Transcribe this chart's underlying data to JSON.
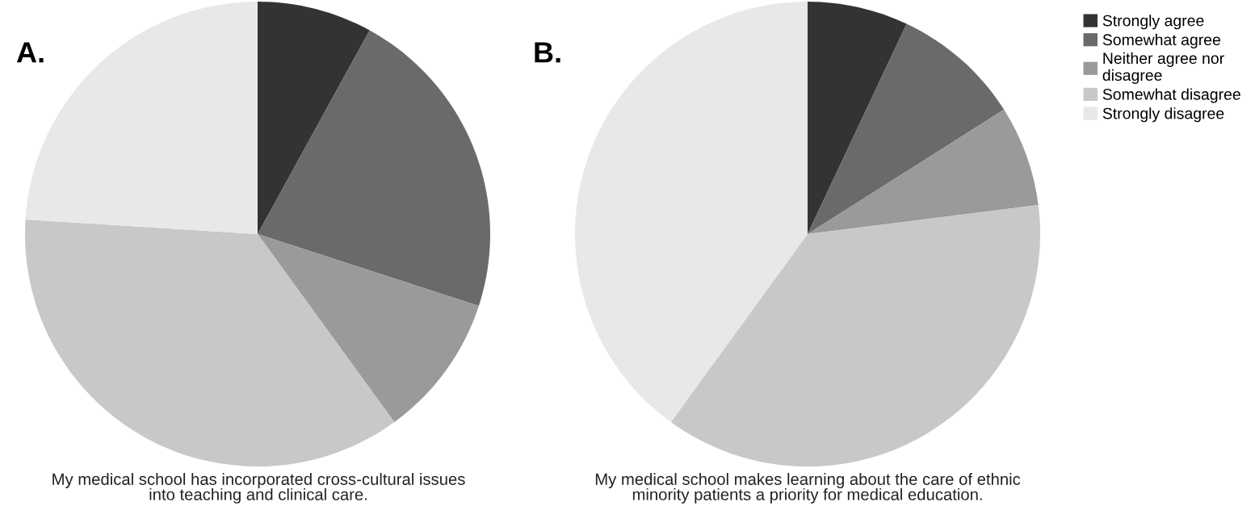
{
  "chart_data": [
    {
      "type": "pie",
      "title": "A.",
      "xlabel": "My medical school has incorporated cross-cultural issues\ninto teaching and clinical care.",
      "categories": [
        "Strongly agree",
        "Somewhat agree",
        "Neither agree nor\ndisagree",
        "Somewhat disagree",
        "Strongly disagree"
      ],
      "values": [
        8,
        22,
        10,
        36,
        24
      ],
      "colors": [
        "#333333",
        "#6a6a6a",
        "#9a9a9a",
        "#c8c8c8",
        "#e8e8e8"
      ],
      "legend": "right"
    },
    {
      "type": "pie",
      "title": "B.",
      "xlabel": "My medical school makes learning about the care of ethnic\nminority patients a priority for medical education.",
      "categories": [
        null,
        null,
        null,
        null,
        null
      ],
      "values": [
        7,
        9,
        7,
        37,
        40
      ],
      "colors": [
        "#333333",
        "#6a6a6a",
        "#9a9a9a",
        "#c8c8c8",
        "#e8e8e8"
      ]
    }
  ]
}
